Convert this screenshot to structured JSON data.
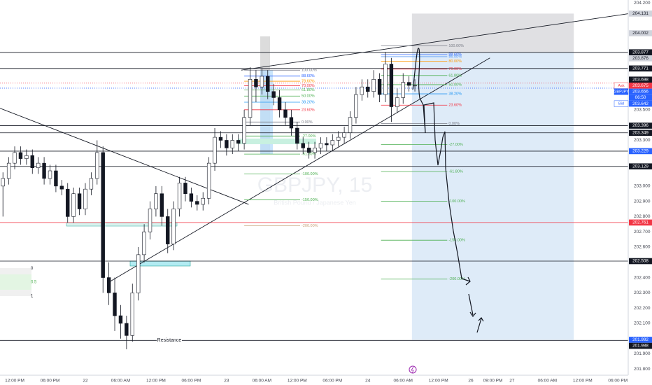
{
  "chart_data": {
    "type": "candlestick",
    "title": "GBPJPY, 15",
    "subtitle": "British Pound / Japanese Yen",
    "grid": false,
    "up_color": "#ffffff",
    "down_color": "#131722",
    "xlim": [
      0,
      427
    ],
    "ylim": [
      201.76,
      204.22
    ],
    "x": [
      2,
      6,
      10,
      14,
      18,
      22,
      26,
      30,
      34,
      38,
      42,
      46,
      50,
      54,
      58,
      62,
      66,
      70,
      74,
      78,
      82,
      86,
      90,
      94,
      98,
      102,
      106,
      110,
      114,
      118,
      122,
      126,
      130,
      134,
      138,
      142,
      146,
      150,
      154,
      158,
      162,
      166,
      170,
      174,
      178,
      182,
      186,
      190,
      194,
      198,
      202,
      206,
      210,
      214,
      218,
      222,
      226,
      230,
      234,
      238,
      242,
      246,
      250,
      254,
      258,
      262,
      266,
      270,
      274,
      278,
      282
    ],
    "open": [
      203.0,
      203.05,
      203.15,
      203.22,
      203.18,
      203.2,
      203.12,
      203.15,
      203.05,
      203.1,
      203.0,
      202.98,
      202.8,
      202.95,
      202.85,
      202.98,
      203.05,
      203.22,
      202.4,
      202.3,
      202.15,
      202.1,
      202.02,
      202.3,
      202.55,
      202.7,
      202.85,
      202.95,
      202.8,
      202.62,
      202.85,
      203.02,
      202.95,
      202.9,
      202.88,
      202.92,
      203.15,
      203.32,
      203.3,
      203.25,
      203.3,
      203.28,
      203.45,
      203.7,
      203.65,
      203.72,
      203.62,
      203.58,
      203.5,
      203.45,
      203.38,
      203.28,
      203.25,
      203.22,
      203.25,
      203.28,
      203.27,
      203.3,
      203.32,
      203.35,
      203.45,
      203.6,
      203.65,
      203.62,
      203.7,
      203.6,
      203.8,
      203.52,
      203.58,
      203.68,
      203.66
    ],
    "high": [
      203.09,
      203.19,
      203.26,
      203.26,
      203.24,
      203.24,
      203.19,
      203.19,
      203.14,
      203.14,
      203.04,
      203.02,
      202.99,
      202.99,
      203.02,
      203.09,
      203.3,
      203.26,
      202.5,
      202.4,
      202.22,
      202.15,
      202.36,
      202.6,
      202.75,
      202.9,
      203.0,
      203.0,
      202.85,
      202.9,
      203.06,
      203.06,
      202.99,
      202.94,
      202.96,
      203.19,
      203.38,
      203.36,
      203.34,
      203.34,
      203.34,
      203.5,
      203.78,
      203.76,
      203.77,
      203.76,
      203.67,
      203.63,
      203.55,
      203.5,
      203.42,
      203.32,
      203.29,
      203.29,
      203.32,
      203.32,
      203.34,
      203.36,
      203.39,
      203.49,
      203.65,
      203.7,
      203.7,
      203.76,
      203.74,
      203.88,
      203.84,
      203.64,
      203.74,
      203.72,
      203.7
    ],
    "low": [
      202.8,
      203.01,
      203.11,
      203.14,
      203.14,
      203.08,
      203.08,
      203.01,
      203.01,
      202.96,
      202.94,
      202.76,
      202.76,
      202.81,
      202.81,
      202.94,
      203.01,
      202.3,
      202.22,
      202.05,
      202.0,
      201.93,
      201.98,
      202.25,
      202.5,
      202.65,
      202.8,
      202.74,
      202.56,
      202.58,
      202.8,
      202.9,
      202.86,
      202.84,
      202.84,
      202.88,
      203.1,
      203.25,
      203.2,
      203.21,
      203.23,
      203.24,
      203.4,
      203.55,
      203.6,
      203.57,
      203.53,
      203.45,
      203.4,
      203.33,
      203.24,
      203.21,
      203.18,
      203.18,
      203.21,
      203.23,
      203.23,
      203.26,
      203.28,
      203.31,
      203.41,
      203.56,
      203.58,
      203.58,
      203.55,
      203.55,
      203.42,
      203.48,
      203.54,
      203.62,
      203.62
    ],
    "close": [
      203.05,
      203.15,
      203.22,
      203.18,
      203.2,
      203.12,
      203.15,
      203.05,
      203.1,
      203.0,
      202.98,
      202.8,
      202.95,
      202.85,
      202.98,
      203.05,
      203.22,
      202.4,
      202.3,
      202.15,
      202.1,
      202.02,
      202.3,
      202.55,
      202.7,
      202.85,
      202.95,
      202.8,
      202.62,
      202.85,
      203.02,
      202.95,
      202.9,
      202.88,
      202.92,
      203.15,
      203.32,
      203.3,
      203.25,
      203.3,
      203.28,
      203.45,
      203.7,
      203.65,
      203.72,
      203.62,
      203.58,
      203.5,
      203.45,
      203.38,
      203.28,
      203.25,
      203.22,
      203.25,
      203.28,
      203.27,
      203.3,
      203.32,
      203.35,
      203.45,
      203.6,
      203.65,
      203.62,
      203.7,
      203.6,
      203.8,
      203.52,
      203.58,
      203.68,
      203.66,
      203.66
    ],
    "xticks": [
      {
        "value": 10,
        "label": "12:00 PM"
      },
      {
        "value": 34,
        "label": "06:00 PM"
      },
      {
        "value": 58,
        "label": "22"
      },
      {
        "value": 82,
        "label": "06:00 AM"
      },
      {
        "value": 106,
        "label": "12:00 PM"
      },
      {
        "value": 130,
        "label": "06:00 PM"
      },
      {
        "value": 154,
        "label": "23"
      },
      {
        "value": 178,
        "label": "06:00 AM"
      },
      {
        "value": 202,
        "label": "12:00 PM"
      },
      {
        "value": 226,
        "label": "06:00 PM"
      },
      {
        "value": 250,
        "label": "24"
      },
      {
        "value": 274,
        "label": "06:00 AM"
      },
      {
        "value": 298,
        "label": "12:00 PM"
      },
      {
        "value": 320,
        "label": "26"
      },
      {
        "value": 335,
        "label": "09:00 PM"
      },
      {
        "value": 348,
        "label": "27"
      },
      {
        "value": 372,
        "label": "06:00 AM"
      },
      {
        "value": 396,
        "label": "12:00 PM"
      },
      {
        "value": 420,
        "label": "06:00 PM"
      }
    ],
    "yticks": [
      {
        "value": 201.8,
        "label": "201.800"
      },
      {
        "value": 201.9,
        "label": "201.900"
      },
      {
        "value": 202.0,
        "label": "202.000"
      },
      {
        "value": 202.1,
        "label": "202.100"
      },
      {
        "value": 202.2,
        "label": "202.200"
      },
      {
        "value": 202.3,
        "label": "202.300"
      },
      {
        "value": 202.4,
        "label": "202.400"
      },
      {
        "value": 202.5,
        "label": "202.500"
      },
      {
        "value": 202.6,
        "label": "202.600"
      },
      {
        "value": 202.7,
        "label": "202.700"
      },
      {
        "value": 202.8,
        "label": "202.800"
      },
      {
        "value": 202.9,
        "label": "202.900"
      },
      {
        "value": 203.0,
        "label": "203.000"
      },
      {
        "value": 203.1,
        "label": "203.100"
      },
      {
        "value": 203.2,
        "label": "203.200"
      },
      {
        "value": 203.3,
        "label": "203.300"
      },
      {
        "value": 203.4,
        "label": "203.400"
      },
      {
        "value": 203.5,
        "label": "203.500"
      },
      {
        "value": 203.6,
        "label": "203.600"
      },
      {
        "value": 203.7,
        "label": "203.700"
      },
      {
        "value": 203.8,
        "label": "203.800"
      },
      {
        "value": 203.9,
        "label": "203.900"
      },
      {
        "value": 204.0,
        "label": "204.000"
      },
      {
        "value": 204.1,
        "label": "204.100"
      },
      {
        "value": 204.2,
        "label": "204.200"
      }
    ],
    "price_tags": [
      {
        "value": 204.131,
        "bg": "#d1d4dc"
      },
      {
        "value": 204.002,
        "bg": "#d1d4dc"
      },
      {
        "value": 203.877,
        "bg": "#131722"
      },
      {
        "value": 203.876,
        "bg": "#d1d4dc",
        "line": "#131722"
      },
      {
        "value": 203.771,
        "bg": "#131722",
        "line": "#131722"
      },
      {
        "value": 203.698,
        "bg": "#131722"
      },
      {
        "value": 203.675,
        "bg": "#f23645",
        "name": "Ask",
        "dotted": true
      },
      {
        "value": 203.656,
        "bg": "#2962ff",
        "name": "GBPJPY",
        "sub": "06:50"
      },
      {
        "value": 203.642,
        "bg": "#2962ff",
        "name": "Bid",
        "dotted": true
      },
      {
        "value": 203.396,
        "bg": "#131722",
        "line": "#131722"
      },
      {
        "value": 203.349,
        "bg": "#131722",
        "line": "#131722"
      },
      {
        "value": 203.229,
        "bg": "#2962ff",
        "line": "#131722"
      },
      {
        "value": 203.129,
        "bg": "#131722",
        "line": "#131722"
      },
      {
        "value": 202.761,
        "bg": "#f23645",
        "line": "#f23645"
      },
      {
        "value": 202.508,
        "bg": "#131722",
        "line": "#131722"
      },
      {
        "value": 201.992,
        "bg": "#2962ff"
      },
      {
        "value": 201.988,
        "bg": "#131722",
        "line": "#131722",
        "note": "Resistance"
      }
    ],
    "fibs": [
      {
        "high": 203.76,
        "low": 203.42,
        "x_start": 166,
        "x_end": 204,
        "levels": [
          {
            "value": 100,
            "label": "100.00%",
            "color": "#787b86"
          },
          {
            "value": 88.6,
            "label": "88.60%",
            "color": "#2962ff"
          },
          {
            "value": 78.6,
            "label": "78.60%",
            "color": "#ff9800"
          },
          {
            "value": 70,
            "label": "70.00%",
            "color": "#f23645"
          },
          {
            "value": 61.8,
            "label": "61.80%",
            "color": "#4caf50"
          },
          {
            "value": 50,
            "label": "50.00%",
            "color": "#4caf50"
          },
          {
            "value": 38.2,
            "label": "38.20%",
            "color": "#2196f3"
          },
          {
            "value": 23.6,
            "label": "23.60%",
            "color": "#f23645"
          },
          {
            "value": 0,
            "label": "0.00%",
            "color": "#787b86"
          },
          {
            "value": -27,
            "label": "-27.00%",
            "color": "#4caf50"
          },
          {
            "value": -61.8,
            "label": "-61.80%",
            "color": "#4caf50"
          },
          {
            "value": -100,
            "label": "-100.00%",
            "color": "#4caf50"
          },
          {
            "value": -150,
            "label": "-150.00%",
            "color": "#4caf50"
          },
          {
            "value": -200,
            "label": "-200.00%",
            "color": "#c8a27a"
          }
        ]
      },
      {
        "high": 203.92,
        "low": 203.41,
        "x_start": 259,
        "x_end": 304,
        "levels": [
          {
            "value": 100,
            "label": "100.00%",
            "color": "#787b86"
          },
          {
            "value": 88.6,
            "label": "88.60%",
            "color": "#2962ff"
          },
          {
            "value": 86,
            "label": "86.00%",
            "color": "#5b9cf6"
          },
          {
            "value": 80,
            "label": "80.00%",
            "color": "#ff9800"
          },
          {
            "value": 70,
            "label": "70.00%",
            "color": "#f23645"
          },
          {
            "value": 61.8,
            "label": "61.80%",
            "color": "#4caf50"
          },
          {
            "value": 50,
            "label": "50.00%",
            "color": "#4caf50"
          },
          {
            "value": 38.2,
            "label": "38.20%",
            "color": "#2196f3"
          },
          {
            "value": 23.6,
            "label": "23.60%",
            "color": "#f23645"
          },
          {
            "value": 0,
            "label": "0.00%",
            "color": "#787b86"
          },
          {
            "value": -27,
            "label": "-27.00%",
            "color": "#4caf50"
          },
          {
            "value": -61.8,
            "label": "-61.80%",
            "color": "#4caf50"
          },
          {
            "value": -100,
            "label": "-100.00%",
            "color": "#4caf50"
          },
          {
            "value": -150,
            "label": "-150.00%",
            "color": "#4caf50"
          },
          {
            "value": -200,
            "label": "-200.00%",
            "color": "#4caf50"
          }
        ]
      }
    ],
    "trendlines": [
      {
        "x": [
          0,
          169
        ],
        "y": [
          203.51,
          202.88
        ]
      },
      {
        "x": [
          74,
          333
        ],
        "y": [
          202.37,
          203.84
        ]
      },
      {
        "x": [
          164,
          427
        ],
        "y": [
          203.76,
          204.13
        ]
      }
    ],
    "position": {
      "start_x": 280,
      "end_x": 390,
      "stop": 204.131,
      "entry": 203.876,
      "target": 201.992
    },
    "range_box": {
      "levels": [
        {
          "price": 202.46,
          "label": "0"
        },
        {
          "price": 202.37,
          "label": "0.5"
        },
        {
          "price": 202.28,
          "label": "1"
        }
      ]
    }
  }
}
